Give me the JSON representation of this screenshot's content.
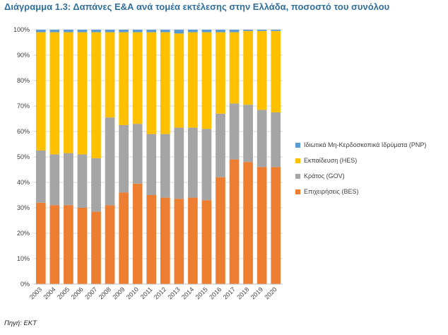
{
  "title": "Διάγραμμα 1.3: Δαπάνες Ε&Α ανά τομέα εκτέλεσης στην Ελλάδα, ποσοστό του συνόλου",
  "source": "Πηγή: ΕΚΤ",
  "chart_data": {
    "type": "bar",
    "stacked": true,
    "categories": [
      "2003",
      "2004",
      "2005",
      "2006",
      "2007",
      "2008",
      "2009",
      "2010",
      "2011",
      "2012",
      "2013",
      "2014",
      "2015",
      "2016",
      "2017",
      "2018",
      "2019",
      "2020"
    ],
    "ylim": [
      0,
      100
    ],
    "ytick_labels": [
      "0%",
      "10%",
      "20%",
      "30%",
      "40%",
      "50%",
      "60%",
      "70%",
      "80%",
      "90%",
      "100%"
    ],
    "grid": true,
    "legend_position": "right",
    "series": [
      {
        "name": "Επιχειρήσεις (BES)",
        "color": "#ed7d31",
        "values": [
          32.0,
          31.0,
          31.0,
          30.0,
          28.5,
          31.0,
          36.0,
          39.5,
          35.0,
          34.0,
          33.5,
          34.0,
          33.0,
          42.0,
          49.0,
          48.0,
          46.0,
          46.0
        ]
      },
      {
        "name": "Κράτος (GOV)",
        "color": "#a5a5a5",
        "values": [
          20.5,
          20.0,
          20.5,
          21.0,
          21.0,
          34.5,
          26.5,
          23.5,
          24.0,
          25.0,
          28.0,
          27.5,
          28.0,
          25.0,
          22.0,
          22.5,
          22.5,
          21.5
        ]
      },
      {
        "name": "Εκπαίδευση (HES)",
        "color": "#ffc000",
        "values": [
          46.5,
          48.0,
          47.5,
          48.0,
          49.5,
          33.5,
          36.5,
          36.0,
          40.0,
          40.0,
          37.0,
          37.5,
          38.0,
          32.0,
          28.0,
          29.0,
          31.0,
          32.0
        ]
      },
      {
        "name": "Ιδιωτικά Μη-Κερδοσκοπικά Ιδρύματα (PNP)",
        "color": "#5b9bd5",
        "values": [
          1.0,
          1.0,
          1.0,
          1.0,
          1.0,
          1.0,
          1.0,
          1.0,
          1.0,
          1.0,
          1.5,
          1.0,
          1.0,
          1.0,
          1.0,
          0.5,
          0.5,
          0.5
        ]
      }
    ],
    "legend_order": [
      3,
      2,
      1,
      0
    ]
  }
}
